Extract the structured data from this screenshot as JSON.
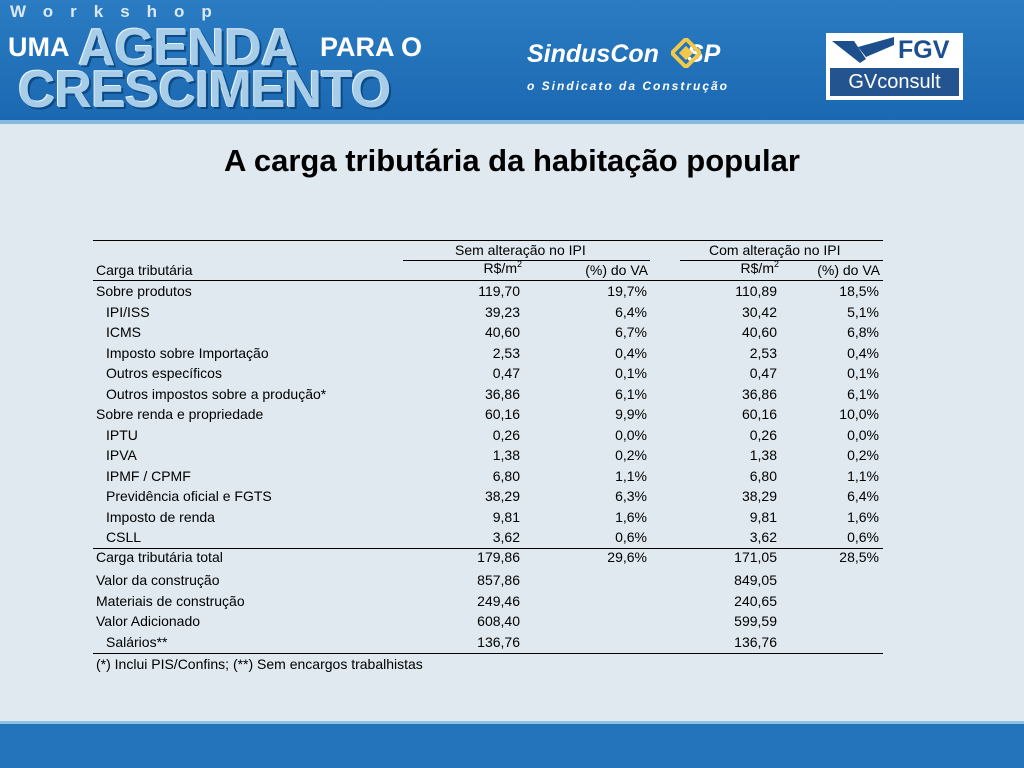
{
  "header": {
    "workshop": "Workshop",
    "agenda_uma": "UMA",
    "agenda_big": "AGENDA",
    "agenda_para": "PARA O",
    "agenda_crescimento": "CRESCIMENTO",
    "sinduscon_name": "SindusCon",
    "sinduscon_sp": "SP",
    "sinduscon_tagline": "o Sindicato da Construção",
    "fgv_name": "FGV",
    "fgv_consult": "GVconsult"
  },
  "slide": {
    "title": "A carga tributária da habitação popular"
  },
  "table": {
    "group_headers": [
      "Sem alteração no IPI",
      "Com alteração no IPI"
    ],
    "row_header": "Carga tributária",
    "unit_main": "R$/m",
    "unit_sup": "2",
    "pct_label": "(%) do VA",
    "rows": [
      {
        "label": "Sobre produtos",
        "indent": false,
        "v1": "119,70",
        "p1": "19,7%",
        "v2": "110,89",
        "p2": "18,5%"
      },
      {
        "label": "IPI/ISS",
        "indent": true,
        "v1": "39,23",
        "p1": "6,4%",
        "v2": "30,42",
        "p2": "5,1%"
      },
      {
        "label": "ICMS",
        "indent": true,
        "v1": "40,60",
        "p1": "6,7%",
        "v2": "40,60",
        "p2": "6,8%"
      },
      {
        "label": "Imposto sobre Importação",
        "indent": true,
        "v1": "2,53",
        "p1": "0,4%",
        "v2": "2,53",
        "p2": "0,4%"
      },
      {
        "label": "Outros específicos",
        "indent": true,
        "v1": "0,47",
        "p1": "0,1%",
        "v2": "0,47",
        "p2": "0,1%"
      },
      {
        "label": "Outros impostos sobre a produção*",
        "indent": true,
        "v1": "36,86",
        "p1": "6,1%",
        "v2": "36,86",
        "p2": "6,1%"
      },
      {
        "label": "Sobre renda e propriedade",
        "indent": false,
        "v1": "60,16",
        "p1": "9,9%",
        "v2": "60,16",
        "p2": "10,0%"
      },
      {
        "label": "IPTU",
        "indent": true,
        "v1": "0,26",
        "p1": "0,0%",
        "v2": "0,26",
        "p2": "0,0%"
      },
      {
        "label": "IPVA",
        "indent": true,
        "v1": "1,38",
        "p1": "0,2%",
        "v2": "1,38",
        "p2": "0,2%"
      },
      {
        "label": "IPMF / CPMF",
        "indent": true,
        "v1": "6,80",
        "p1": "1,1%",
        "v2": "6,80",
        "p2": "1,1%"
      },
      {
        "label": "Previdência oficial e FGTS",
        "indent": true,
        "v1": "38,29",
        "p1": "6,3%",
        "v2": "38,29",
        "p2": "6,4%"
      },
      {
        "label": "Imposto de renda",
        "indent": true,
        "v1": "9,81",
        "p1": "1,6%",
        "v2": "9,81",
        "p2": "1,6%"
      },
      {
        "label": "CSLL",
        "indent": true,
        "v1": "3,62",
        "p1": "0,6%",
        "v2": "3,62",
        "p2": "0,6%"
      }
    ],
    "total": {
      "label": "Carga tributária total",
      "v1": "179,86",
      "p1": "29,6%",
      "v2": "171,05",
      "p2": "28,5%"
    },
    "extra_rows": [
      {
        "label": "Valor da construção",
        "indent": false,
        "v1": "857,86",
        "v2": "849,05"
      },
      {
        "label": "Materiais de construção",
        "indent": false,
        "v1": "249,46",
        "v2": "240,65"
      },
      {
        "label": "Valor Adicionado",
        "indent": false,
        "v1": "608,40",
        "v2": "599,59"
      },
      {
        "label": "Salários**",
        "indent": true,
        "v1": "136,76",
        "v2": "136,76"
      }
    ],
    "footnote": "(*) Inclui PIS/Confins; (**) Sem encargos trabalhistas"
  },
  "colors": {
    "header_blue": "#1a68b1",
    "background": "#dfe9ef",
    "footer_blue": "#2474bb"
  }
}
